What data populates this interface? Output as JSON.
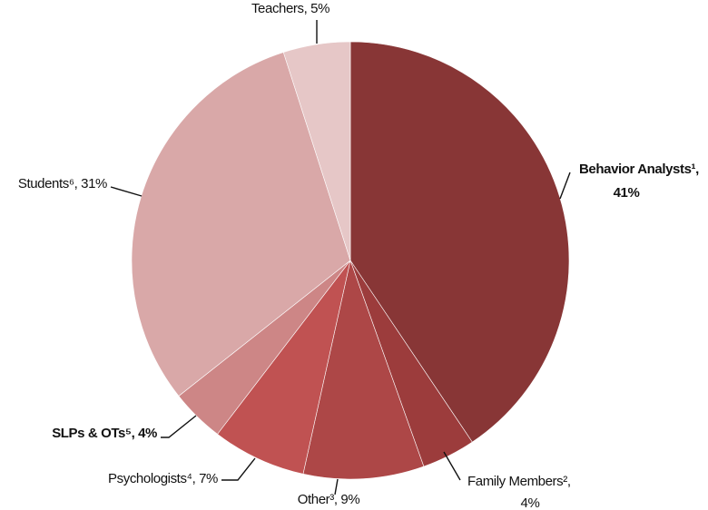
{
  "chart_data": {
    "type": "pie",
    "labels": [
      [
        "Behavior Analysts¹,",
        "41%"
      ],
      [
        "Family Members²,",
        "4%"
      ],
      [
        "Other³, 9%"
      ],
      [
        "Psychologists⁴, 7%"
      ],
      [
        "SLPs & OTs⁵, 4%"
      ],
      [
        "Students⁶, 31%"
      ],
      [
        "Teachers, 5%"
      ]
    ],
    "values": [
      41,
      4,
      9,
      7,
      4,
      31,
      5
    ],
    "colors": [
      "#883636",
      "#9c3c3c",
      "#ad4747",
      "#c05252",
      "#cd8686",
      "#d9a8a8",
      "#e6c7c7"
    ],
    "bold_labels": [
      0,
      4
    ]
  }
}
